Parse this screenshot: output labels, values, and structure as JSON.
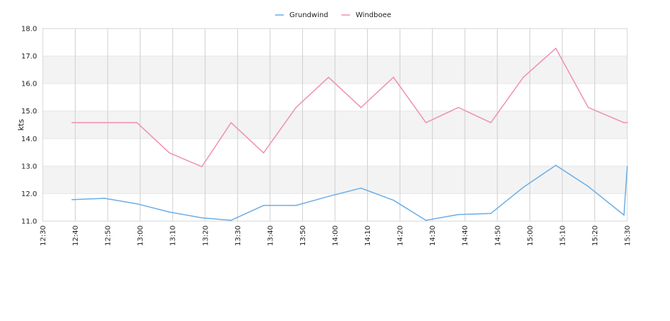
{
  "chart_data": {
    "type": "line",
    "title": "",
    "xlabel": "",
    "ylabel": "kts",
    "ylim": [
      11.0,
      18.0
    ],
    "y_ticks": [
      "11.0",
      "12.0",
      "13.0",
      "14.0",
      "15.0",
      "16.0",
      "17.0",
      "18.0"
    ],
    "x_ticks": [
      "12:30",
      "12:40",
      "12:50",
      "13:00",
      "13:10",
      "13:20",
      "13:30",
      "13:40",
      "13:50",
      "14:00",
      "14:10",
      "14:20",
      "14:30",
      "14:40",
      "14:50",
      "15:00",
      "15:10",
      "15:20",
      "15:30"
    ],
    "xlim": [
      "12:30",
      "15:30"
    ],
    "legend_position": "top-center",
    "grid": true,
    "series": [
      {
        "name": "Grundwind",
        "color": "#6aaee8",
        "x": [
          "12:39",
          "12:49",
          "12:59",
          "13:09",
          "13:19",
          "13:28",
          "13:38",
          "13:48",
          "13:58",
          "14:08",
          "14:18",
          "14:28",
          "14:38",
          "14:48",
          "14:58",
          "15:08",
          "15:18",
          "15:29",
          "15:30"
        ],
        "values": [
          11.78,
          11.83,
          11.63,
          11.33,
          11.12,
          11.03,
          11.57,
          11.57,
          11.9,
          12.2,
          11.76,
          11.03,
          11.24,
          11.28,
          12.23,
          13.03,
          12.26,
          11.22,
          12.99
        ]
      },
      {
        "name": "Windboee",
        "color": "#ef8fb8",
        "x": [
          "12:39",
          "12:49",
          "12:59",
          "13:09",
          "13:19",
          "13:28",
          "13:38",
          "13:48",
          "13:58",
          "14:08",
          "14:18",
          "14:28",
          "14:38",
          "14:48",
          "14:58",
          "15:08",
          "15:18",
          "15:29",
          "15:30"
        ],
        "values": [
          14.58,
          14.58,
          14.58,
          13.48,
          12.98,
          14.58,
          13.48,
          15.13,
          16.23,
          15.13,
          16.23,
          14.58,
          15.13,
          14.58,
          16.23,
          17.28,
          15.13,
          14.58,
          14.58
        ]
      }
    ]
  }
}
